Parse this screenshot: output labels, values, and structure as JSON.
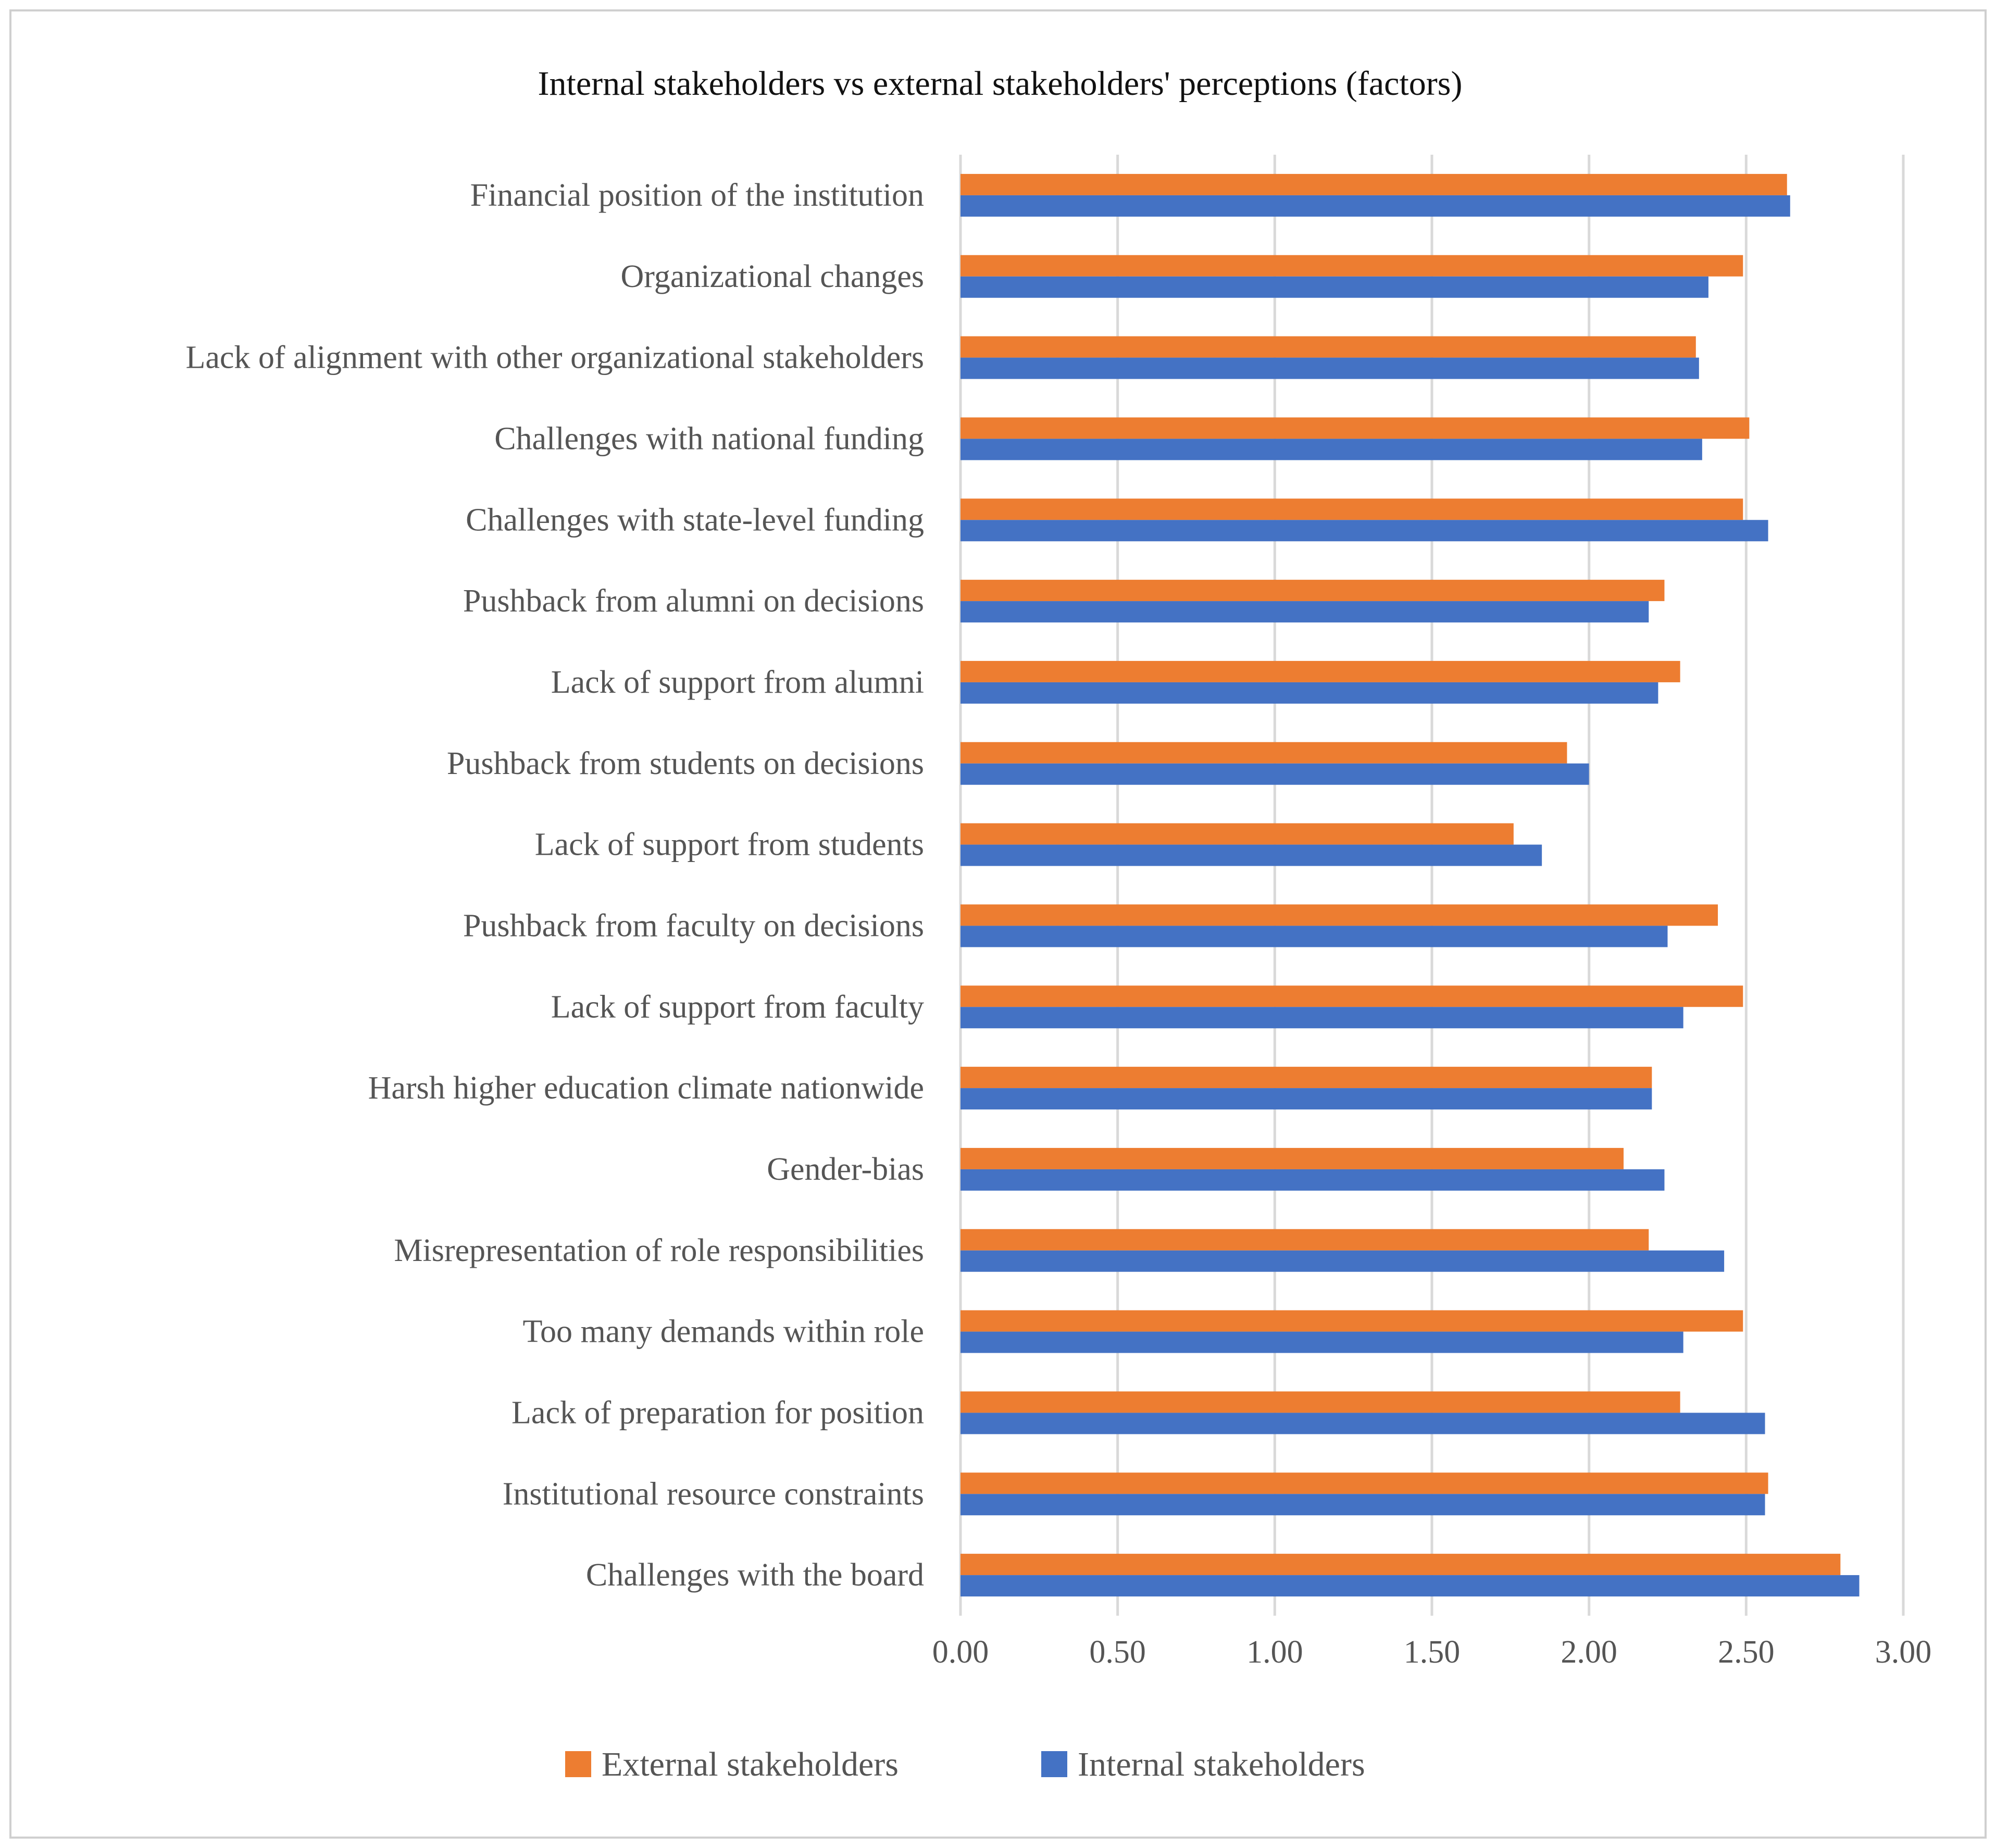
{
  "chart_data": {
    "type": "bar",
    "orientation": "horizontal",
    "title": "Internal stakeholders vs external stakeholders' perceptions (factors)",
    "xlabel": "",
    "ylabel": "",
    "xlim": [
      0,
      3
    ],
    "x_ticks": [
      "0.00",
      "0.50",
      "1.00",
      "1.50",
      "2.00",
      "2.50",
      "3.00"
    ],
    "grid": "vertical",
    "legend_position": "bottom",
    "categories": [
      "Financial position of the institution",
      "Organizational changes",
      "Lack of alignment with other organizational stakeholders",
      "Challenges with national funding",
      "Challenges with state-level funding",
      "Pushback from alumni on decisions",
      "Lack of support from alumni",
      "Pushback from students on decisions",
      "Lack of support from students",
      "Pushback from faculty on decisions",
      "Lack of support from faculty",
      "Harsh higher education climate nationwide",
      "Gender-bias",
      "Misrepresentation of role responsibilities",
      "Too many demands within role",
      "Lack of preparation for position",
      "Institutional resource constraints",
      "Challenges with the board"
    ],
    "series": [
      {
        "name": "External stakeholders",
        "color": "#ED7D31",
        "values": [
          2.63,
          2.49,
          2.34,
          2.51,
          2.49,
          2.24,
          2.29,
          1.93,
          1.76,
          2.41,
          2.49,
          2.2,
          2.11,
          2.19,
          2.49,
          2.29,
          2.57,
          2.8
        ]
      },
      {
        "name": "Internal stakeholders",
        "color": "#4472C4",
        "values": [
          2.64,
          2.38,
          2.35,
          2.36,
          2.57,
          2.19,
          2.22,
          2.0,
          1.85,
          2.25,
          2.3,
          2.2,
          2.24,
          2.43,
          2.3,
          2.56,
          2.56,
          2.86
        ]
      }
    ]
  }
}
